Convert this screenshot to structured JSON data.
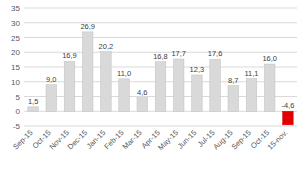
{
  "chart_data": {
    "type": "bar",
    "categories": [
      "Sep-15",
      "Oct-15",
      "Nov-15",
      "Dec-15",
      "Jan-15",
      "Feb-15",
      "Mar-15",
      "Apr-15",
      "May-15",
      "Jun-15",
      "Jul-15",
      "Aug-15",
      "Sep-15",
      "Oct-15",
      "15-nov."
    ],
    "values": [
      1.5,
      9.0,
      16.9,
      26.9,
      20.2,
      11.0,
      4.6,
      16.8,
      17.7,
      12.3,
      17.6,
      8.7,
      11.1,
      16.0,
      -4.6
    ],
    "value_labels": [
      "1,5",
      "9,0",
      "16,9",
      "26,9",
      "20,2",
      "11,0",
      "4,6",
      "16,8",
      "17,7",
      "12,3",
      "17,6",
      "8,7",
      "11,1",
      "16,0",
      "-4,6"
    ],
    "colors": [
      "#d9d9d9",
      "#d9d9d9",
      "#d9d9d9",
      "#d9d9d9",
      "#d9d9d9",
      "#d9d9d9",
      "#d9d9d9",
      "#d9d9d9",
      "#d9d9d9",
      "#d9d9d9",
      "#d9d9d9",
      "#d9d9d9",
      "#d9d9d9",
      "#d9d9d9",
      "#e00000"
    ],
    "ylim": [
      -5,
      35
    ],
    "yticks": [
      -5,
      0,
      5,
      10,
      15,
      20,
      25,
      30,
      35
    ],
    "grid": true,
    "data_labels": true
  }
}
